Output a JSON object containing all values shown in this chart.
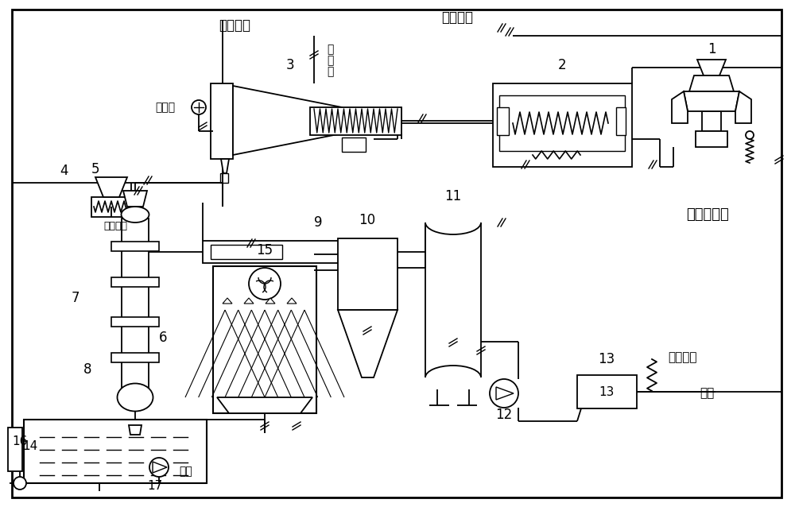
{
  "bg_color": "#ffffff",
  "labels": {
    "high_temp_gas": "高温气体",
    "low_temp_gas": "低温气体",
    "dry_air": "干空气",
    "wet_air": "湿\n空\n气",
    "inject_air": "喷入空气",
    "base_oil_recovery": "基础油回收",
    "power_output": "电力输出",
    "exhaust": "排气",
    "water_supply": "补水",
    "num1": "1",
    "num2": "2",
    "num3": "3",
    "num4": "4",
    "num5": "5",
    "num6": "6",
    "num7": "7",
    "num8": "8",
    "num9": "9",
    "num10": "10",
    "num11": "11",
    "num12": "12",
    "num13": "13",
    "num14": "14",
    "num15": "15",
    "num16": "16",
    "num17": "17"
  }
}
